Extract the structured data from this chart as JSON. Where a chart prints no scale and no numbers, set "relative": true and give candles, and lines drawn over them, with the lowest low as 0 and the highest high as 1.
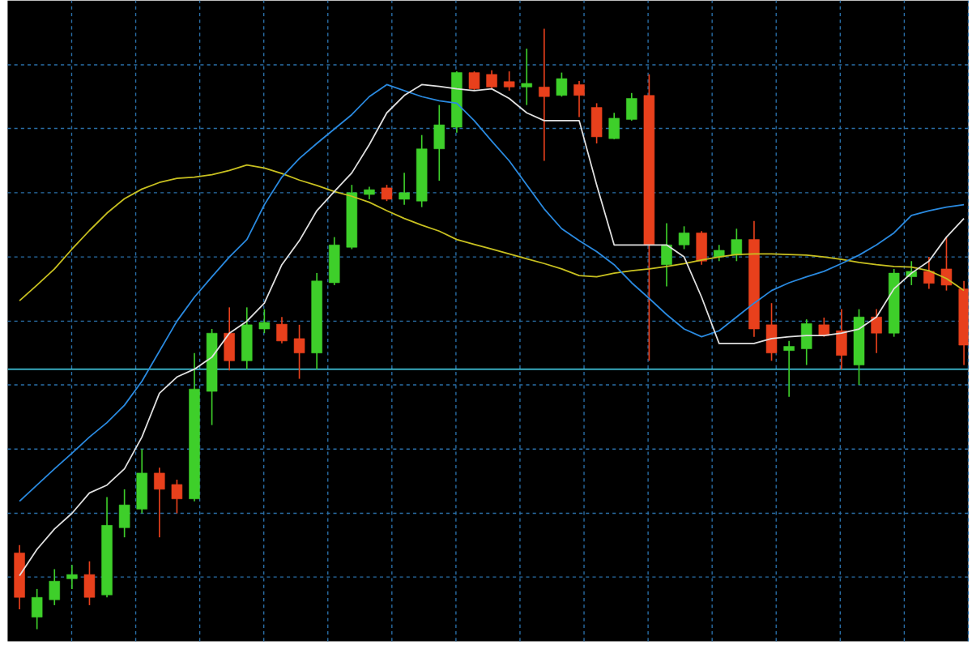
{
  "chart_data": {
    "type": "candlestick",
    "relative": true,
    "grid": true,
    "tick_labels": false,
    "categories": [
      null,
      null,
      null,
      null,
      null,
      null,
      null,
      null,
      null,
      null,
      null,
      null,
      null,
      null,
      null,
      null,
      null,
      null,
      null,
      null,
      null,
      null,
      null,
      null,
      null,
      null,
      null,
      null,
      null,
      null,
      null,
      null,
      null,
      null,
      null,
      null,
      null,
      null,
      null,
      null,
      null,
      null,
      null,
      null,
      null,
      null,
      null,
      null,
      null,
      null,
      null,
      null,
      null,
      null,
      null
    ],
    "ohlc": [
      [
        0.127,
        0.14,
        0.033,
        0.053
      ],
      [
        0.02,
        0.067,
        0,
        0.053
      ],
      [
        0.049,
        0.1,
        0.04,
        0.08
      ],
      [
        0.084,
        0.107,
        0.067,
        0.091
      ],
      [
        0.091,
        0.113,
        0.04,
        0.053
      ],
      [
        0.057,
        0.22,
        0.053,
        0.173
      ],
      [
        0.169,
        0.233,
        0.153,
        0.207
      ],
      [
        0.2,
        0.3,
        0.193,
        0.26
      ],
      [
        0.26,
        0.269,
        0.153,
        0.233
      ],
      [
        0.241,
        0.249,
        0.193,
        0.217
      ],
      [
        0.217,
        0.46,
        0.213,
        0.4
      ],
      [
        0.396,
        0.5,
        0.34,
        0.493
      ],
      [
        0.493,
        0.536,
        0.431,
        0.447
      ],
      [
        0.447,
        0.536,
        0.433,
        0.507
      ],
      [
        0.5,
        0.533,
        0.493,
        0.511
      ],
      [
        0.508,
        0.52,
        0.476,
        0.48
      ],
      [
        0.484,
        0.507,
        0.417,
        0.46
      ],
      [
        0.46,
        0.593,
        0.433,
        0.58
      ],
      [
        0.577,
        0.653,
        0.573,
        0.64
      ],
      [
        0.636,
        0.74,
        0.633,
        0.727
      ],
      [
        0.724,
        0.737,
        0.716,
        0.732
      ],
      [
        0.735,
        0.74,
        0.713,
        0.716
      ],
      [
        0.716,
        0.76,
        0.707,
        0.727
      ],
      [
        0.713,
        0.823,
        0.703,
        0.8
      ],
      [
        0.8,
        0.873,
        0.747,
        0.84
      ],
      [
        0.836,
        0.929,
        0.827,
        0.927
      ],
      [
        0.927,
        0.929,
        0.897,
        0.9
      ],
      [
        0.924,
        0.931,
        0.9,
        0.903
      ],
      [
        0.912,
        0.929,
        0.897,
        0.903
      ],
      [
        0.903,
        0.967,
        0.873,
        0.909
      ],
      [
        0.903,
        1,
        0.78,
        0.887
      ],
      [
        0.889,
        0.927,
        0.887,
        0.917
      ],
      [
        0.907,
        0.913,
        0.853,
        0.889
      ],
      [
        0.869,
        0.876,
        0.809,
        0.82
      ],
      [
        0.817,
        0.86,
        0.816,
        0.851
      ],
      [
        0.849,
        0.893,
        0.847,
        0.884
      ],
      [
        0.889,
        0.924,
        0.447,
        0.64
      ],
      [
        0.607,
        0.676,
        0.571,
        0.64
      ],
      [
        0.64,
        0.671,
        0.633,
        0.66
      ],
      [
        0.66,
        0.663,
        0.607,
        0.613
      ],
      [
        0.62,
        0.64,
        0.613,
        0.631
      ],
      [
        0.623,
        0.667,
        0.613,
        0.649
      ],
      [
        0.649,
        0.68,
        0.487,
        0.5
      ],
      [
        0.507,
        0.543,
        0.447,
        0.46
      ],
      [
        0.464,
        0.48,
        0.387,
        0.471
      ],
      [
        0.467,
        0.516,
        0.44,
        0.509
      ],
      [
        0.507,
        0.519,
        0.487,
        0.489
      ],
      [
        0.497,
        0.533,
        0.433,
        0.456
      ],
      [
        0.44,
        0.533,
        0.407,
        0.52
      ],
      [
        0.52,
        0.533,
        0.46,
        0.493
      ],
      [
        0.493,
        0.6,
        0.487,
        0.593
      ],
      [
        0.587,
        0.613,
        0.573,
        0.596
      ],
      [
        0.596,
        0.62,
        0.567,
        0.576
      ],
      [
        0.6,
        0.653,
        0.564,
        0.573
      ],
      [
        0.567,
        0.58,
        0.44,
        0.473
      ]
    ],
    "colors": [
      "#e8401c",
      "#3ecf2a",
      "#3ecf2a",
      "#3ecf2a",
      "#e8401c",
      "#3ecf2a",
      "#3ecf2a",
      "#3ecf2a",
      "#e8401c",
      "#e8401c",
      "#3ecf2a",
      "#3ecf2a",
      "#e8401c",
      "#3ecf2a",
      "#3ecf2a",
      "#e8401c",
      "#e8401c",
      "#3ecf2a",
      "#3ecf2a",
      "#3ecf2a",
      "#3ecf2a",
      "#e8401c",
      "#3ecf2a",
      "#3ecf2a",
      "#3ecf2a",
      "#3ecf2a",
      "#e8401c",
      "#e8401c",
      "#e8401c",
      "#3ecf2a",
      "#e8401c",
      "#3ecf2a",
      "#e8401c",
      "#e8401c",
      "#3ecf2a",
      "#3ecf2a",
      "#e8401c",
      "#3ecf2a",
      "#3ecf2a",
      "#e8401c",
      "#3ecf2a",
      "#3ecf2a",
      "#e8401c",
      "#e8401c",
      "#3ecf2a",
      "#3ecf2a",
      "#e8401c",
      "#e8401c",
      "#3ecf2a",
      "#e8401c",
      "#3ecf2a",
      "#3ecf2a",
      "#e8401c",
      "#e8401c",
      "#e8401c"
    ],
    "series": [
      {
        "type": "line",
        "color": "#c8c020",
        "values": [
          0.547,
          0.573,
          0.6,
          0.633,
          0.664,
          0.693,
          0.717,
          0.733,
          0.744,
          0.751,
          0.753,
          0.757,
          0.764,
          0.773,
          0.768,
          0.759,
          0.748,
          0.739,
          0.729,
          0.721,
          0.711,
          0.697,
          0.684,
          0.673,
          0.663,
          0.649,
          0.641,
          0.633,
          0.625,
          0.617,
          0.609,
          0.6,
          0.589,
          0.587,
          0.593,
          0.597,
          0.6,
          0.604,
          0.609,
          0.615,
          0.62,
          0.624,
          0.625,
          0.625,
          0.624,
          0.623,
          0.62,
          0.616,
          0.611,
          0.607,
          0.604,
          0.603,
          0.597,
          0.584,
          0.564
        ]
      },
      {
        "type": "line",
        "color": "#2a8ae0",
        "values": [
          0.213,
          0.24,
          0.267,
          0.293,
          0.32,
          0.344,
          0.373,
          0.413,
          0.463,
          0.513,
          0.553,
          0.587,
          0.62,
          0.649,
          0.707,
          0.753,
          0.784,
          0.809,
          0.833,
          0.857,
          0.887,
          0.907,
          0.897,
          0.887,
          0.88,
          0.876,
          0.847,
          0.813,
          0.78,
          0.74,
          0.7,
          0.667,
          0.647,
          0.629,
          0.607,
          0.577,
          0.551,
          0.524,
          0.5,
          0.487,
          0.497,
          0.52,
          0.543,
          0.564,
          0.577,
          0.587,
          0.596,
          0.609,
          0.623,
          0.64,
          0.66,
          0.689,
          0.697,
          0.703,
          0.707
        ]
      },
      {
        "type": "line",
        "color": "#e0e0e0",
        "values": [
          0.089,
          0.133,
          0.167,
          0.193,
          0.227,
          0.24,
          0.267,
          0.32,
          0.393,
          0.42,
          0.433,
          0.453,
          0.493,
          0.513,
          0.543,
          0.607,
          0.647,
          0.697,
          0.729,
          0.76,
          0.807,
          0.86,
          0.889,
          0.907,
          0.904,
          0.9,
          0.897,
          0.9,
          0.884,
          0.86,
          0.847,
          0.847,
          0.847,
          0.74,
          0.64,
          0.64,
          0.64,
          0.64,
          0.62,
          0.553,
          0.476,
          0.476,
          0.476,
          0.484,
          0.487,
          0.489,
          0.489,
          0.493,
          0.5,
          0.52,
          0.567,
          0.593,
          0.613,
          0.653,
          0.684
        ]
      }
    ],
    "ref_lines": [
      {
        "axis": "y",
        "value": 0.433,
        "color": "#40c8e0"
      }
    ]
  }
}
